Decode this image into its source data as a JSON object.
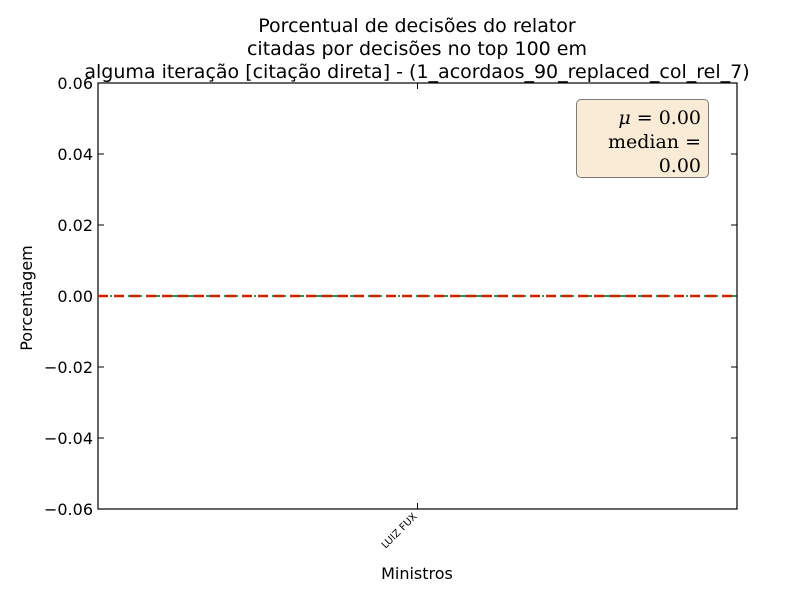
{
  "chart_data": {
    "type": "bar",
    "title": "Porcentual de decisões do relator\ncitadas por decisões no top 100 em\nalguma iteração [citação direta] - (1_acordaos_90_replaced_col_rel_7)",
    "xlabel": "Ministros",
    "ylabel": "Porcentagem",
    "categories": [
      "LUIZ FUX"
    ],
    "values": [
      0.0
    ],
    "ylim": [
      -0.06,
      0.06
    ],
    "yticks": [
      -0.06,
      -0.04,
      -0.02,
      0.0,
      0.02,
      0.04,
      0.06
    ],
    "ytick_labels": [
      "−0.06",
      "−0.04",
      "−0.02",
      "0.00",
      "0.02",
      "0.04",
      "0.06"
    ],
    "mean_line": 0.0,
    "median_line": 0.0,
    "stats_box": {
      "mu_label": "μ",
      "mu_value": "0.00",
      "median_label": "median",
      "median_value": "0.00"
    },
    "grid": false,
    "colors": {
      "mean": "#cc2200",
      "median": "#2e8b57",
      "box_fill": "#faebd7",
      "box_edge": "#7a7a7a"
    }
  }
}
